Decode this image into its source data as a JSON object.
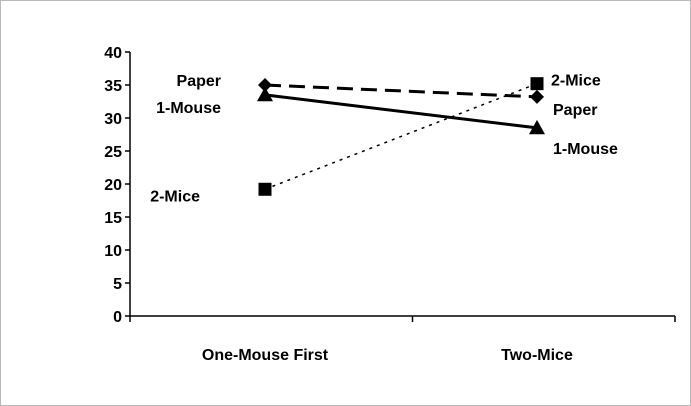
{
  "chart_data": {
    "type": "line",
    "categories": [
      "One-Mouse First",
      "Two-Mice"
    ],
    "ylim": [
      0,
      40
    ],
    "yticks": [
      "0",
      "5",
      "10",
      "15",
      "20",
      "25",
      "30",
      "35",
      "40"
    ],
    "grid": false,
    "series": [
      {
        "name": "Paper",
        "values": [
          35,
          33.2
        ],
        "line_style": "dashed",
        "marker": "diamond",
        "color": "#000000"
      },
      {
        "name": "1-Mouse",
        "values": [
          33.5,
          28.5
        ],
        "line_style": "solid",
        "marker": "triangle",
        "color": "#000000"
      },
      {
        "name": "2-Mice",
        "values": [
          19.2,
          35.2
        ],
        "line_style": "dotted",
        "marker": "square",
        "color": "#000000"
      }
    ],
    "annotations": {
      "left": [
        {
          "series": "Paper",
          "text": "Paper"
        },
        {
          "series": "1-Mouse",
          "text": "1-Mouse"
        },
        {
          "series": "2-Mice",
          "text": "2-Mice"
        }
      ],
      "right": [
        {
          "series": "2-Mice",
          "text": "2-Mice"
        },
        {
          "series": "Paper",
          "text": "Paper"
        },
        {
          "series": "1-Mouse",
          "text": "1-Mouse"
        }
      ]
    }
  }
}
